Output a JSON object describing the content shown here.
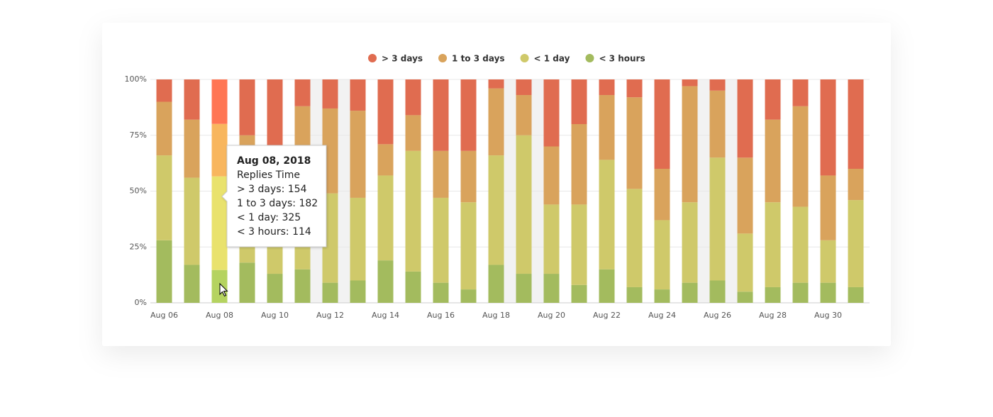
{
  "chart_data": {
    "type": "stacked_percent_bar",
    "categories": [
      "Aug 06",
      null,
      "Aug 08",
      null,
      "Aug 10",
      null,
      "Aug 12",
      null,
      "Aug 14",
      null,
      "Aug 16",
      null,
      "Aug 18",
      null,
      "Aug 20",
      null,
      "Aug 22",
      null,
      "Aug 24",
      null,
      "Aug 26",
      null,
      "Aug 28",
      null,
      "Aug 30",
      null
    ],
    "series": [
      {
        "name": "> 3 days",
        "color": "#e06c50",
        "values": [
          10,
          18,
          19.9,
          25,
          30,
          12,
          13,
          14,
          29,
          16,
          32,
          32,
          4,
          7,
          30,
          20,
          7,
          8,
          40,
          3,
          5,
          35,
          18,
          12,
          43,
          40
        ]
      },
      {
        "name": "1 to 3 days",
        "color": "#d9a35c",
        "values": [
          24,
          26,
          23.5,
          20,
          10,
          38,
          38,
          39,
          14,
          16,
          21,
          23,
          30,
          18,
          26,
          36,
          29,
          41,
          23,
          52,
          30,
          34,
          37,
          45,
          29,
          14
        ]
      },
      {
        "name": "< 1 day",
        "color": "#cfc96a",
        "values": [
          38,
          39,
          41.9,
          37,
          47,
          35,
          40,
          37,
          38,
          54,
          38,
          39,
          49,
          62,
          31,
          36,
          49,
          44,
          31,
          36,
          55,
          26,
          38,
          34,
          19,
          39
        ]
      },
      {
        "name": "< 3 hours",
        "color": "#a3bb5e",
        "values": [
          28,
          17,
          14.7,
          18,
          13,
          15,
          9,
          10,
          19,
          14,
          9,
          6,
          17,
          13,
          13,
          8,
          15,
          7,
          6,
          9,
          10,
          5,
          7,
          9,
          9,
          7
        ]
      }
    ],
    "ylim": [
      0,
      100
    ],
    "yticks": [
      {
        "value": 0,
        "label": "0%"
      },
      {
        "value": 25,
        "label": "25%"
      },
      {
        "value": 50,
        "label": "50%"
      },
      {
        "value": 75,
        "label": "75%"
      },
      {
        "value": 100,
        "label": "100%"
      }
    ],
    "grid": true,
    "legend": "top",
    "tooltip": {
      "date": "Aug 08, 2018",
      "label": "Replies Time",
      "values": [
        154,
        182,
        325,
        114
      ]
    }
  }
}
